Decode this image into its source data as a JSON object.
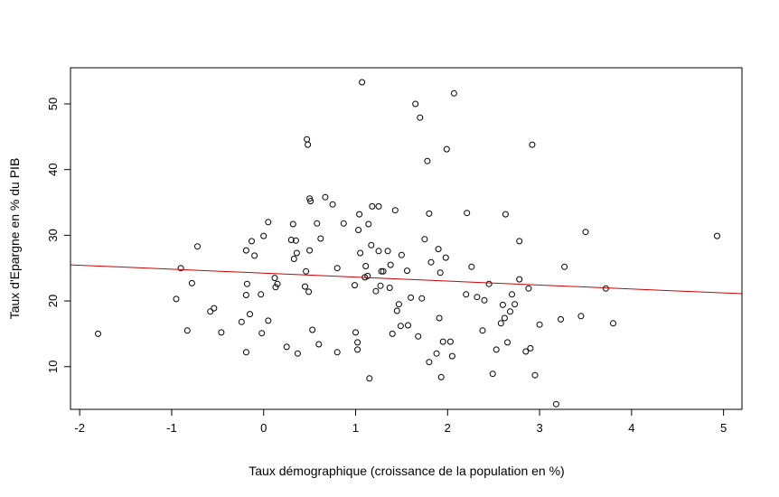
{
  "chart_data": {
    "type": "scatter",
    "title": "",
    "xlabel": "Taux démographique (croissance de la population en %)",
    "ylabel": "Taux d'Epargne en % du PIB",
    "xlim": [
      -2.1,
      5.2
    ],
    "ylim": [
      3.5,
      55.5
    ],
    "x_ticks": [
      -2,
      -1,
      0,
      1,
      2,
      3,
      4,
      5
    ],
    "y_ticks": [
      10,
      20,
      30,
      40,
      50
    ],
    "grid": false,
    "legend": "none",
    "point_color": "#000000",
    "line_color": "#cc0000",
    "regression_line": {
      "x": [
        -2.1,
        5.2
      ],
      "y": [
        25.5,
        21.1
      ]
    },
    "points": {
      "x": [
        -1.8,
        -0.95,
        -0.9,
        -0.83,
        -0.78,
        -0.72,
        -0.58,
        -0.54,
        -0.46,
        -0.24,
        -0.19,
        -0.19,
        -0.19,
        -0.18,
        -0.15,
        -0.13,
        -0.1,
        -0.03,
        -0.02,
        0.0,
        0.05,
        0.05,
        0.12,
        0.13,
        0.15,
        0.25,
        0.3,
        0.32,
        0.33,
        0.35,
        0.36,
        0.37,
        0.45,
        0.46,
        0.47,
        0.48,
        0.49,
        0.5,
        0.5,
        0.51,
        0.53,
        0.58,
        0.6,
        0.62,
        0.67,
        0.75,
        0.8,
        0.8,
        0.87,
        0.99,
        1.0,
        1.02,
        1.02,
        1.03,
        1.04,
        1.05,
        1.07,
        1.1,
        1.11,
        1.13,
        1.14,
        1.15,
        1.17,
        1.18,
        1.22,
        1.25,
        1.25,
        1.27,
        1.28,
        1.3,
        1.35,
        1.37,
        1.38,
        1.4,
        1.43,
        1.45,
        1.47,
        1.49,
        1.5,
        1.56,
        1.57,
        1.6,
        1.65,
        1.68,
        1.7,
        1.72,
        1.75,
        1.78,
        1.8,
        1.8,
        1.82,
        1.88,
        1.9,
        1.91,
        1.92,
        1.93,
        1.95,
        1.98,
        1.99,
        2.03,
        2.05,
        2.07,
        2.2,
        2.21,
        2.26,
        2.32,
        2.38,
        2.4,
        2.45,
        2.49,
        2.53,
        2.58,
        2.6,
        2.62,
        2.63,
        2.65,
        2.68,
        2.7,
        2.73,
        2.78,
        2.78,
        2.85,
        2.88,
        2.9,
        2.92,
        2.95,
        3.0,
        3.18,
        3.23,
        3.27,
        3.45,
        3.5,
        3.72,
        3.8,
        4.93
      ],
      "y": [
        15.0,
        20.3,
        25.0,
        15.5,
        22.7,
        28.3,
        18.4,
        18.9,
        15.2,
        16.8,
        27.7,
        12.2,
        20.9,
        22.6,
        18.0,
        29.1,
        26.9,
        21.0,
        15.1,
        29.9,
        32.0,
        17.0,
        23.5,
        22.1,
        22.6,
        13.0,
        29.3,
        31.7,
        26.4,
        29.2,
        27.3,
        12.0,
        22.2,
        24.5,
        44.6,
        43.8,
        21.4,
        27.7,
        35.6,
        35.2,
        15.6,
        31.8,
        13.4,
        29.5,
        35.8,
        34.7,
        25.0,
        12.2,
        31.8,
        22.4,
        15.2,
        13.7,
        12.6,
        30.8,
        33.2,
        27.3,
        53.3,
        23.6,
        25.3,
        23.8,
        31.7,
        8.2,
        28.5,
        34.4,
        21.5,
        34.4,
        27.6,
        22.3,
        24.5,
        24.5,
        27.6,
        22.0,
        25.5,
        15.0,
        33.8,
        18.5,
        19.5,
        16.2,
        27.0,
        24.6,
        16.3,
        20.5,
        50.0,
        14.6,
        47.9,
        20.4,
        29.4,
        41.3,
        10.7,
        33.3,
        25.9,
        12.0,
        27.9,
        17.4,
        24.3,
        8.4,
        13.8,
        26.6,
        43.1,
        13.8,
        11.6,
        51.6,
        21.0,
        33.4,
        25.2,
        20.6,
        15.5,
        20.1,
        22.6,
        8.9,
        12.6,
        16.6,
        19.4,
        17.4,
        33.2,
        13.7,
        18.4,
        21.0,
        19.5,
        23.3,
        29.1,
        12.3,
        21.9,
        12.8,
        43.8,
        8.7,
        16.4,
        4.3,
        17.2,
        25.2,
        17.7,
        30.5,
        21.9,
        16.6,
        29.9
      ]
    }
  }
}
